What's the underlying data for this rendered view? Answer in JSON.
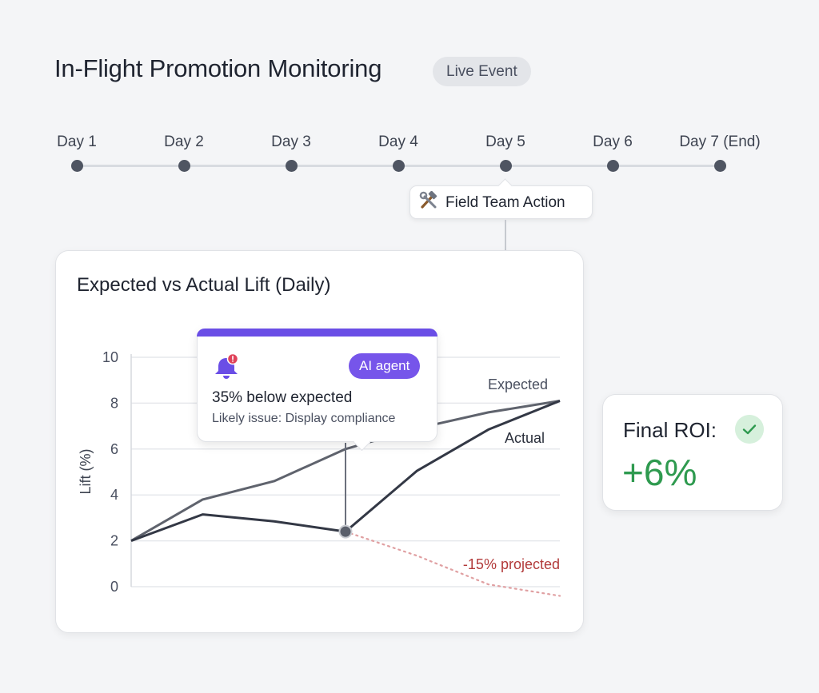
{
  "header": {
    "title": "In-Flight Promotion Monitoring",
    "badge": "Live Event"
  },
  "timeline": {
    "days": [
      "Day 1",
      "Day 2",
      "Day 3",
      "Day 4",
      "Day 5",
      "Day 6",
      "Day 7 (End)"
    ],
    "action_label": "Field Team Action",
    "action_icon": "tools-icon",
    "action_day": "Day 5"
  },
  "chart_data": {
    "type": "line",
    "title": "Expected vs Actual Lift (Daily)",
    "ylabel": "Lift (%)",
    "xlabel": "",
    "ylim": [
      0,
      10
    ],
    "yticks": [
      0,
      2,
      4,
      6,
      8,
      10
    ],
    "x": [
      0,
      1,
      2,
      3,
      4,
      5,
      6
    ],
    "grid": true,
    "series": [
      {
        "name": "Expected",
        "color": "#5f636d",
        "values": [
          2.0,
          3.8,
          4.6,
          6.0,
          6.9,
          7.6,
          8.1
        ]
      },
      {
        "name": "Actual",
        "color": "#333845",
        "values": [
          2.0,
          3.15,
          2.85,
          2.4,
          5.05,
          6.85,
          8.1
        ]
      },
      {
        "name": "-15% projected",
        "color": "#e0a0a2",
        "style": "dotted",
        "x": [
          3,
          4,
          5,
          6
        ],
        "values": [
          2.4,
          1.35,
          0.1,
          -0.4
        ]
      }
    ],
    "highlight_x": 3
  },
  "alert": {
    "headline": "35% below expected",
    "detail": "Likely issue: Display compliance",
    "badge": "AI agent",
    "icon": "bell-alert-icon",
    "accent_color": "#6a4ee6"
  },
  "roi": {
    "label": "Final ROI:",
    "value": "+6%",
    "value_color": "#2e9a4f",
    "icon": "check-icon"
  }
}
